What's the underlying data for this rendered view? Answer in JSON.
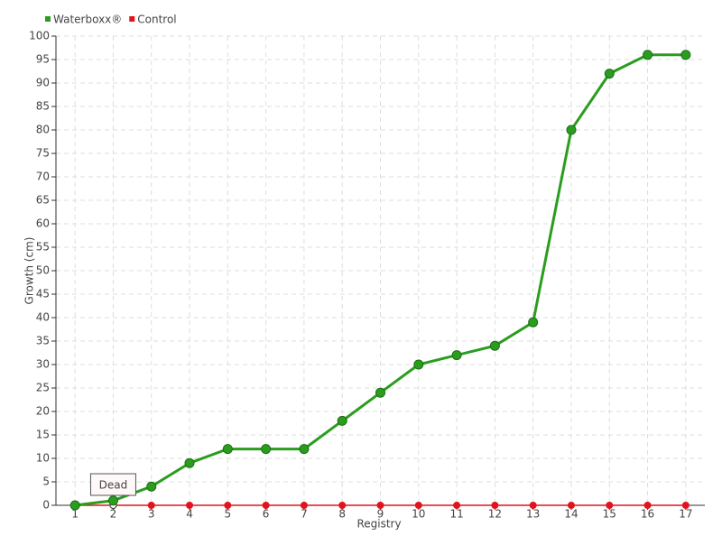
{
  "chart_data": {
    "type": "line",
    "categories": [
      "1",
      "2",
      "3",
      "4",
      "5",
      "6",
      "7",
      "8",
      "9",
      "10",
      "11",
      "12",
      "13",
      "14",
      "15",
      "16",
      "17"
    ],
    "series": [
      {
        "name": "Waterboxx®",
        "color": "#2a9d1f",
        "values": [
          0,
          1,
          4,
          9,
          12,
          12,
          12,
          18,
          24,
          30,
          32,
          34,
          39,
          80,
          92,
          96,
          96
        ]
      },
      {
        "name": "Control",
        "color": "#e0141e",
        "values": [
          0,
          0,
          0,
          0,
          0,
          0,
          0,
          0,
          0,
          0,
          0,
          0,
          0,
          0,
          0,
          0,
          0
        ]
      }
    ],
    "y_label": "Growth (cm)",
    "x_label": "Registry",
    "ylim": [
      0,
      100
    ],
    "yticks": [
      0,
      5,
      10,
      15,
      20,
      25,
      30,
      35,
      40,
      45,
      50,
      55,
      60,
      65,
      70,
      75,
      80,
      85,
      90,
      95,
      100
    ],
    "grid": true,
    "legend": "top-left",
    "annotations": [
      {
        "text": "Dead"
      }
    ]
  }
}
